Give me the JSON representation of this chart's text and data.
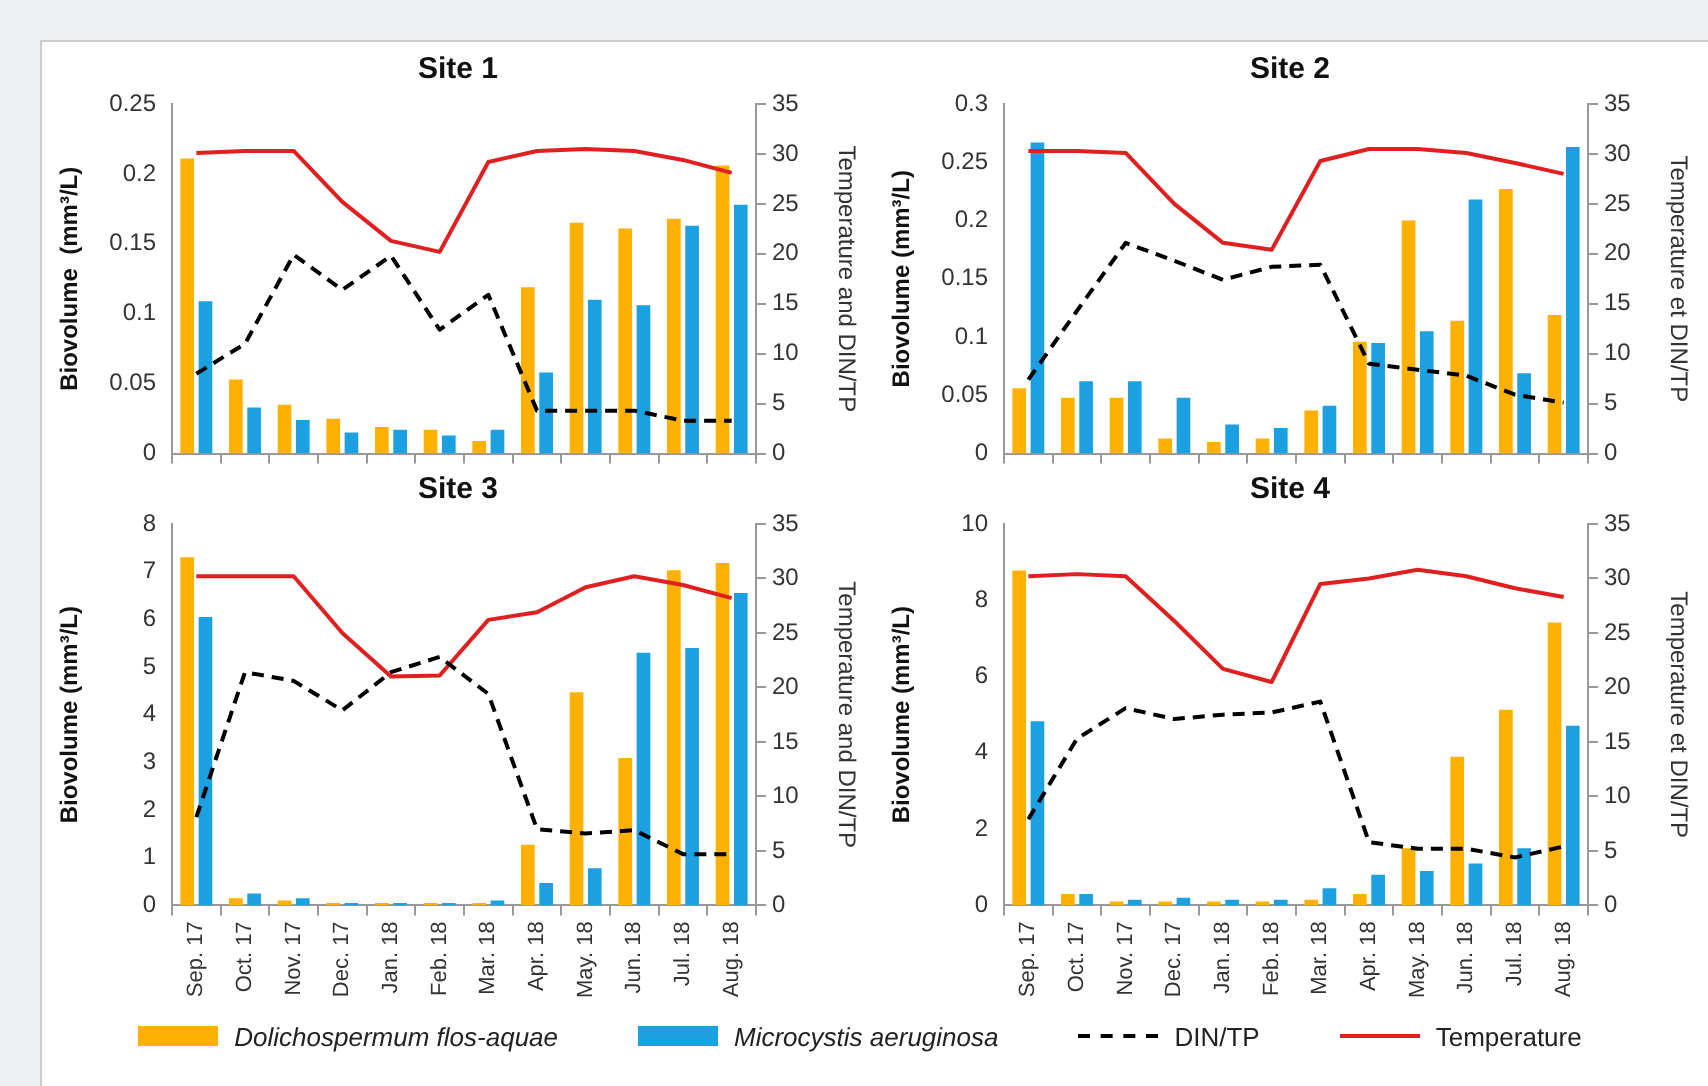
{
  "chart_data": [
    {
      "type": "bar",
      "title": "Site 1",
      "ylabel": "Biovolume  (mm³/L)",
      "y2label": "Temperature and DIN/TP",
      "categories": [
        "Sep. 17",
        "Oct. 17",
        "Nov. 17",
        "Dec. 17",
        "Jan. 18",
        "Feb. 18",
        "Mar. 18",
        "Apr. 18",
        "May. 18",
        "Jun. 18",
        "Jul. 18",
        "Aug. 18"
      ],
      "ylim": [
        0,
        0.25
      ],
      "yticks": [
        0,
        0.05,
        0.1,
        0.15,
        0.2,
        0.25
      ],
      "y2lim": [
        0,
        35
      ],
      "y2ticks": [
        0,
        5,
        10,
        15,
        20,
        25,
        30,
        35
      ],
      "grid": false,
      "legend": "bottom",
      "tick_labels": "y",
      "marker": "none",
      "series": [
        {
          "name": "Dolichospermum flos-aquae",
          "color": "#ffb000",
          "values": [
            0.211,
            0.053,
            0.035,
            0.025,
            0.019,
            0.017,
            0.009,
            0.119,
            0.165,
            0.161,
            0.168,
            0.206
          ]
        },
        {
          "name": "Microcystis aeruginosa",
          "color": "#1ba1e2",
          "values": [
            0.109,
            0.033,
            0.024,
            0.015,
            0.017,
            0.013,
            0.017,
            0.058,
            0.11,
            0.106,
            0.163,
            0.178
          ]
        },
        {
          "name": "DIN/TP",
          "type": "line",
          "axis": "y2",
          "color": "#000000",
          "line_style": "dashed",
          "values": [
            8.0,
            11,
            19.9,
            16.4,
            19.8,
            12.4,
            15.9,
            4.3,
            4.3,
            4.3,
            3.3,
            3.3
          ]
        },
        {
          "name": "Temperature",
          "type": "line",
          "axis": "y2",
          "color": "#e02020",
          "line_style": "solid",
          "values": [
            30.1,
            30.3,
            30.3,
            25.2,
            21.3,
            20.2,
            29.2,
            30.3,
            30.5,
            30.3,
            29.4,
            28.1
          ]
        }
      ]
    },
    {
      "type": "bar",
      "title": "Site 2",
      "ylabel": "Biovolume (mm³/L)",
      "y2label": "Temperature et DIN/TP",
      "categories": [
        "Sep. 17",
        "Oct. 17",
        "Nov. 17",
        "Dec. 17",
        "Jan. 18",
        "Feb. 18",
        "Mar. 18",
        "Apr. 18",
        "May. 18",
        "Jun. 18",
        "Jul. 18",
        "Aug. 18"
      ],
      "ylim": [
        0,
        0.3
      ],
      "yticks": [
        0,
        0.05,
        0.1,
        0.15,
        0.2,
        0.25,
        0.3
      ],
      "y2lim": [
        0,
        35
      ],
      "y2ticks": [
        0,
        5,
        10,
        15,
        20,
        25,
        30,
        35
      ],
      "grid": false,
      "legend": "bottom",
      "tick_labels": "y",
      "marker": "none",
      "series": [
        {
          "name": "Dolichospermum flos-aquae",
          "color": "#ffb000",
          "values": [
            0.056,
            0.048,
            0.048,
            0.013,
            0.01,
            0.013,
            0.037,
            0.096,
            0.2,
            0.114,
            0.227,
            0.119
          ]
        },
        {
          "name": "Microcystis aeruginosa",
          "color": "#1ba1e2",
          "values": [
            0.267,
            0.062,
            0.062,
            0.048,
            0.025,
            0.022,
            0.041,
            0.095,
            0.105,
            0.218,
            0.069,
            0.263
          ]
        },
        {
          "name": "DIN/TP",
          "type": "line",
          "axis": "y2",
          "color": "#000000",
          "line_style": "dashed",
          "values": [
            7.4,
            14.3,
            21.1,
            19.3,
            17.4,
            18.7,
            18.9,
            9.0,
            8.4,
            7.8,
            5.9,
            5.1
          ]
        },
        {
          "name": "Temperature",
          "type": "line",
          "axis": "y2",
          "color": "#e02020",
          "line_style": "solid",
          "values": [
            30.3,
            30.3,
            30.1,
            25.0,
            21.1,
            20.4,
            29.3,
            30.5,
            30.5,
            30.1,
            29.1,
            28.0
          ]
        }
      ]
    },
    {
      "type": "bar",
      "title": "Site 3",
      "ylabel": "Biovolume (mm³/L)",
      "y2label": "Temperature and DIN/TP",
      "categories": [
        "Sep. 17",
        "Oct. 17",
        "Nov. 17",
        "Dec. 17",
        "Jan. 18",
        "Feb. 18",
        "Mar. 18",
        "Apr. 18",
        "May. 18",
        "Jun. 18",
        "Jul. 18",
        "Aug. 18"
      ],
      "ylim": [
        0,
        8
      ],
      "yticks": [
        0,
        1,
        2,
        3,
        4,
        5,
        6,
        7,
        8
      ],
      "y2lim": [
        0,
        35
      ],
      "y2ticks": [
        0,
        5,
        10,
        15,
        20,
        25,
        30,
        35
      ],
      "grid": false,
      "legend": "bottom",
      "marker": "none",
      "series": [
        {
          "name": "Dolichospermum flos-aquae",
          "color": "#ffb000",
          "values": [
            7.3,
            0.15,
            0.1,
            0.05,
            0.05,
            0.05,
            0.05,
            1.27,
            4.47,
            3.09,
            7.03,
            7.18
          ]
        },
        {
          "name": "Microcystis aeruginosa",
          "color": "#1ba1e2",
          "values": [
            6.05,
            0.25,
            0.15,
            0.05,
            0.05,
            0.05,
            0.1,
            0.47,
            0.78,
            5.3,
            5.4,
            6.55
          ]
        },
        {
          "name": "DIN/TP",
          "type": "line",
          "axis": "y2",
          "color": "#000000",
          "line_style": "dashed",
          "values": [
            8.1,
            21.4,
            20.6,
            17.9,
            21.4,
            22.8,
            19.4,
            7.0,
            6.6,
            6.9,
            4.7,
            4.7
          ]
        },
        {
          "name": "Temperature",
          "type": "line",
          "axis": "y2",
          "color": "#e02020",
          "line_style": "solid",
          "values": [
            30.2,
            30.2,
            30.2,
            25.0,
            21.0,
            21.1,
            26.2,
            26.9,
            29.2,
            30.2,
            29.4,
            28.2
          ]
        }
      ]
    },
    {
      "type": "bar",
      "title": "Site 4",
      "ylabel": "Biovolume (mm³/L)",
      "y2label": "Temperature et DIN/TP",
      "categories": [
        "Sep. 17",
        "Oct. 17",
        "Nov. 17",
        "Dec. 17",
        "Jan. 18",
        "Feb. 18",
        "Mar. 18",
        "Apr. 18",
        "May. 18",
        "Jun. 18",
        "Jul. 18",
        "Aug. 18"
      ],
      "ylim": [
        0,
        10
      ],
      "yticks": [
        0,
        2,
        4,
        6,
        8,
        10
      ],
      "y2lim": [
        0,
        35
      ],
      "y2ticks": [
        0,
        5,
        10,
        15,
        20,
        25,
        30,
        35
      ],
      "grid": false,
      "legend": "bottom",
      "marker": "none",
      "series": [
        {
          "name": "Dolichospermum flos-aquae",
          "color": "#ffb000",
          "values": [
            8.78,
            0.3,
            0.1,
            0.1,
            0.1,
            0.1,
            0.15,
            0.3,
            1.5,
            3.9,
            5.13,
            7.42
          ]
        },
        {
          "name": "Microcystis aeruginosa",
          "color": "#1ba1e2",
          "values": [
            4.83,
            0.3,
            0.15,
            0.2,
            0.15,
            0.15,
            0.45,
            0.8,
            0.9,
            1.1,
            1.5,
            4.71
          ]
        },
        {
          "name": "DIN/TP",
          "type": "line",
          "axis": "y2",
          "color": "#000000",
          "line_style": "dashed",
          "values": [
            7.9,
            15.3,
            18.1,
            17.1,
            17.5,
            17.7,
            18.7,
            5.8,
            5.2,
            5.2,
            4.4,
            5.4
          ]
        },
        {
          "name": "Temperature",
          "type": "line",
          "axis": "y2",
          "color": "#e02020",
          "line_style": "solid",
          "values": [
            30.2,
            30.4,
            30.2,
            26.1,
            21.7,
            20.5,
            29.5,
            30.0,
            30.8,
            30.2,
            29.1,
            28.3
          ]
        }
      ]
    }
  ]
}
